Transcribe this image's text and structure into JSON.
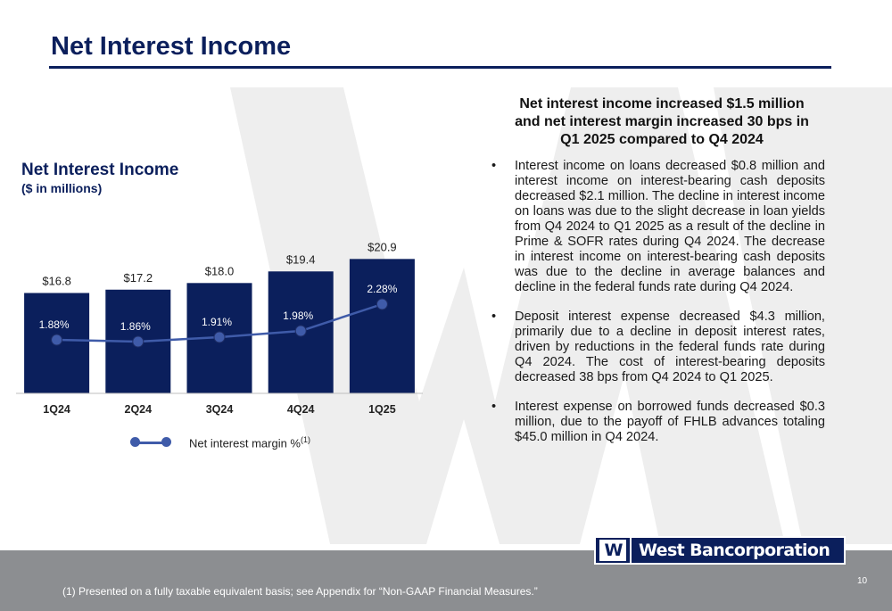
{
  "slide": {
    "title": "Net Interest Income",
    "page_number": "10",
    "brand_color": "#0b1f5c"
  },
  "chart_data": {
    "type": "bar",
    "title": "Net Interest Income",
    "subtitle": "($ in millions)",
    "categories": [
      "1Q24",
      "2Q24",
      "3Q24",
      "4Q24",
      "1Q25"
    ],
    "series": [
      {
        "values": [
          16.8,
          17.2,
          18.0,
          19.4,
          20.9
        ],
        "labels": [
          "$16.8",
          "$17.2",
          "$18.0",
          "$19.4",
          "$20.9"
        ],
        "color": "#0b1f5c"
      },
      {
        "name": "Net interest margin %",
        "name_sup": "(1)",
        "type": "line",
        "values": [
          1.88,
          1.86,
          1.91,
          1.98,
          2.28
        ],
        "labels": [
          "1.88%",
          "1.86%",
          "1.91%",
          "1.98%",
          "2.28%"
        ],
        "color": "#3f5ba9"
      }
    ],
    "legend_position": "bottom",
    "grid": false
  },
  "summary": {
    "heading_lines": [
      "Net interest income increased $1.5 million",
      "and net interest margin increased 30 bps in",
      "Q1 2025 compared to Q4 2024"
    ],
    "bullet_symbol": "•",
    "bullets": [
      "Interest income on loans decreased $0.8 million and interest income on interest-bearing cash deposits decreased $2.1 million. The decline in interest income on loans was due to the slight decrease in loan yields from Q4 2024 to Q1 2025 as a result of the decline in Prime & SOFR rates during Q4 2024. The decrease in interest income on interest-bearing cash deposits was due to the decline in average balances and decline in the federal funds rate during Q4 2024.",
      "Deposit interest expense decreased $4.3 million, primarily due to a decline in deposit interest rates, driven by reductions in the federal funds rate during Q4 2024. The cost of interest-bearing deposits decreased 38 bps from Q4 2024 to Q1 2025.",
      "Interest expense on borrowed funds decreased $0.3 million, due to the payoff of FHLB advances totaling $45.0 million in Q4 2024."
    ]
  },
  "footnote": {
    "marker": "(1)",
    "text": " Presented on a fully taxable equivalent basis; see Appendix for “Non-GAAP Financial Measures.”"
  },
  "logo": {
    "mark": "W",
    "text": "West Bancorporation"
  }
}
